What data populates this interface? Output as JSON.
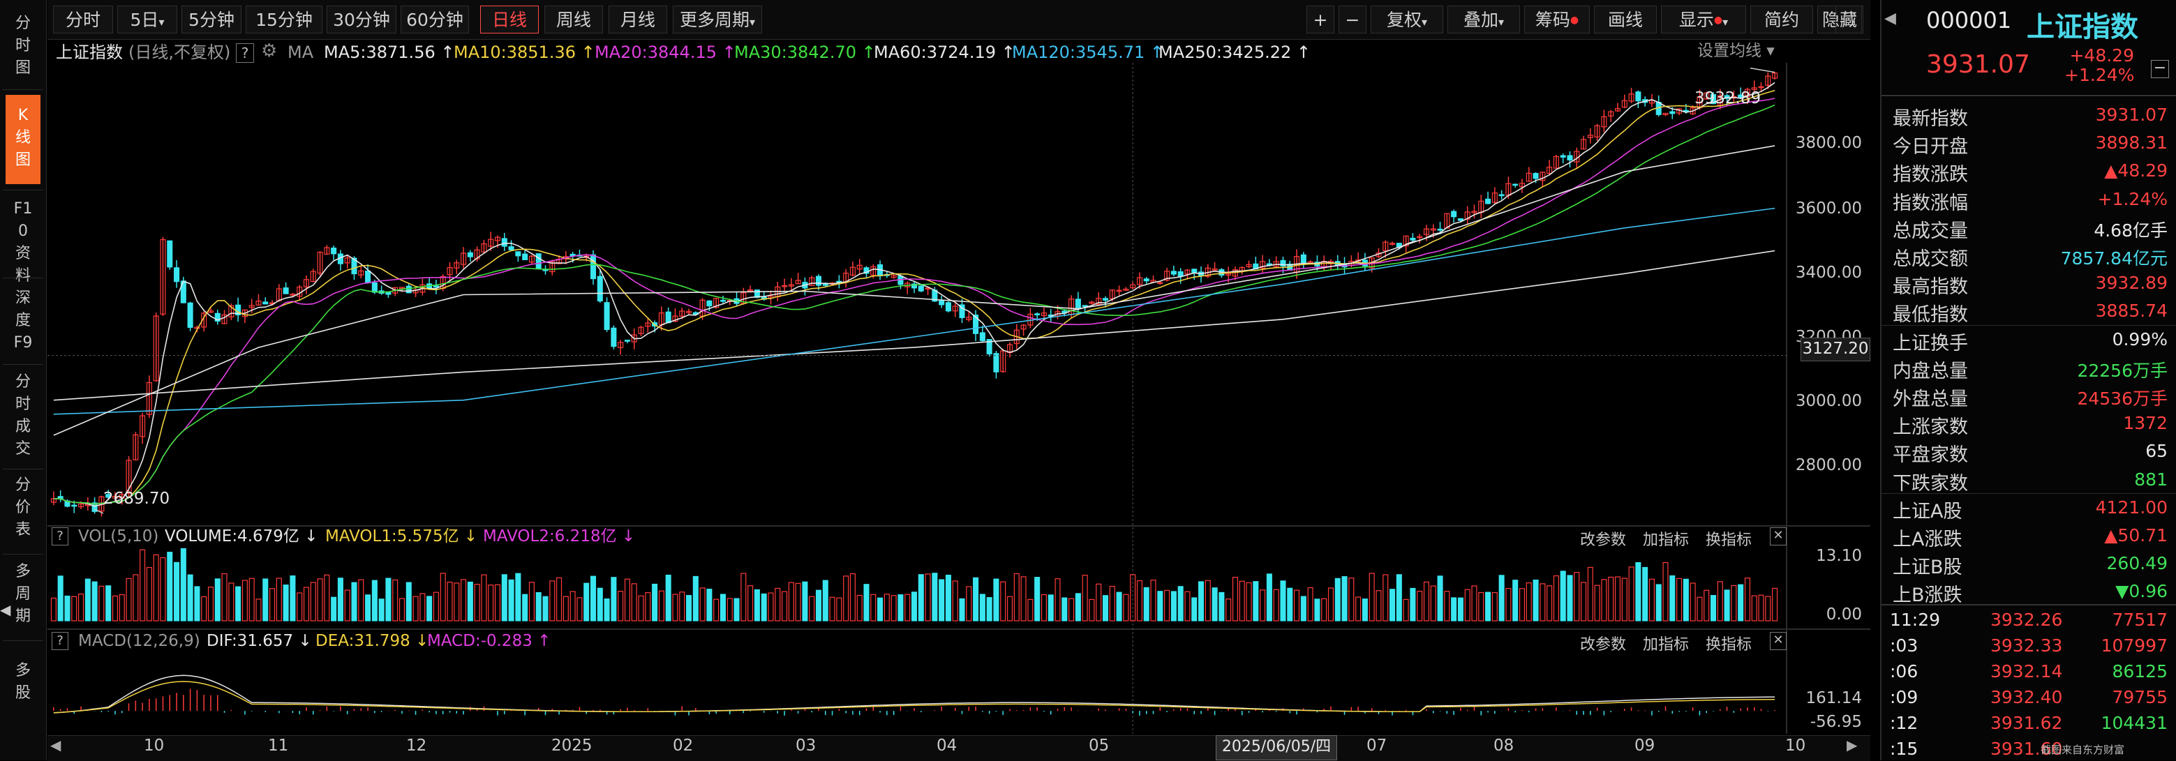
{
  "toolbar": {
    "period_tabs": [
      "分时",
      "5日",
      "5分钟",
      "15分钟",
      "30分钟",
      "60分钟",
      "日线",
      "周线",
      "月线",
      "更多周期"
    ],
    "right_buttons": [
      "+",
      "−",
      "复权",
      "叠加",
      "筹码",
      "画线",
      "显示",
      "简约",
      "隐藏"
    ]
  },
  "sidebar": {
    "items": [
      "分时图",
      "K线图",
      "F10资料",
      "深度F9",
      "分时成交",
      "分价表",
      "多周期",
      "多股"
    ]
  },
  "main": {
    "title": "上证指数",
    "adjust": "(日线,不复权)",
    "ma_label": "MA",
    "ma": [
      {
        "text": "MA5:3871.56 ↑",
        "color": "#e8e8e8"
      },
      {
        "text": "MA10:3851.36 ↑",
        "color": "#f0d040"
      },
      {
        "text": "MA20:3844.15 ↑",
        "color": "#e040e0"
      },
      {
        "text": "MA30:3842.70 ↑",
        "color": "#40e040"
      },
      {
        "text": "MA60:3724.19 ↑",
        "color": "#e8e8e8"
      },
      {
        "text": "MA120:3545.71 ↑",
        "color": "#40c0f0"
      },
      {
        "text": "MA250:3425.22 ↑",
        "color": "#e8e8e8"
      }
    ],
    "setting": "设置均线",
    "high_label": "3932.89",
    "low_label": "2689.70",
    "price_tag": "3127.20",
    "y_ticks": [
      "3800.00",
      "3600.00",
      "3400.00",
      "3200.00",
      "3000.00",
      "2800.00"
    ],
    "vol": {
      "help": "?",
      "name": "VOL(5,10)",
      "volume": "VOLUME:4.679亿 ↓",
      "mavol1": "MAVOL1:5.575亿 ↓",
      "mavol2": "MAVOL2:6.218亿 ↓",
      "buttons": [
        "改参数",
        "加指标",
        "换指标"
      ],
      "y_ticks": [
        "13.10",
        "0.00"
      ]
    },
    "macd": {
      "help": "?",
      "name": "MACD(12,26,9)",
      "dif": "DIF:31.657 ↓",
      "dea": "DEA:31.798 ↓",
      "macd": "MACD:-0.283 ↑",
      "buttons": [
        "改参数",
        "加指标",
        "换指标"
      ],
      "y_ticks": [
        "161.14",
        "-56.95"
      ]
    },
    "x_labels": [
      "10",
      "11",
      "12",
      "2025",
      "02",
      "03",
      "04",
      "05",
      "06",
      "07",
      "08",
      "09",
      "10"
    ],
    "cursor_date": "2025/06/05/四"
  },
  "quote": {
    "code": "000001",
    "name": "上证指数",
    "price": "3931.07",
    "change": "+48.29",
    "change_pct": "+1.24%",
    "rows": [
      {
        "label": "最新指数",
        "value": "3931.07",
        "color": "red"
      },
      {
        "label": "今日开盘",
        "value": "3898.31",
        "color": "red"
      },
      {
        "label": "指数涨跌",
        "value": "▲48.29",
        "color": "red"
      },
      {
        "label": "指数涨幅",
        "value": "+1.24%",
        "color": "red"
      },
      {
        "label": "总成交量",
        "value": "4.68亿手",
        "color": "white"
      },
      {
        "label": "总成交额",
        "value": "7857.84亿元",
        "color": "cyan"
      },
      {
        "label": "最高指数",
        "value": "3932.89",
        "color": "red"
      },
      {
        "label": "最低指数",
        "value": "3885.74",
        "color": "red"
      },
      {
        "label": "上证换手",
        "value": "0.99%",
        "color": "white"
      },
      {
        "label": "内盘总量",
        "value": "22256万手",
        "color": "green"
      },
      {
        "label": "外盘总量",
        "value": "24536万手",
        "color": "red"
      },
      {
        "label": "上涨家数",
        "value": "1372",
        "color": "red"
      },
      {
        "label": "平盘家数",
        "value": "65",
        "color": "white"
      },
      {
        "label": "下跌家数",
        "value": "881",
        "color": "green"
      },
      {
        "label": "上证A股",
        "value": "4121.00",
        "color": "red"
      },
      {
        "label": "上A涨跌",
        "value": "▲50.71",
        "color": "red"
      },
      {
        "label": "上证B股",
        "value": "260.49",
        "color": "green"
      },
      {
        "label": "上B涨跌",
        "value": "▼0.96",
        "color": "green"
      }
    ],
    "ticks": [
      {
        "time": "11:29",
        "price": "3932.26",
        "vol": "77517",
        "vcolor": "red"
      },
      {
        "time": ":03",
        "price": "3932.33",
        "vol": "107997",
        "vcolor": "red"
      },
      {
        "time": ":06",
        "price": "3932.14",
        "vol": "86125",
        "vcolor": "green"
      },
      {
        "time": ":09",
        "price": "3932.40",
        "vol": "79755",
        "vcolor": "red"
      },
      {
        "time": ":12",
        "price": "3931.62",
        "vol": "104431",
        "vcolor": "green"
      },
      {
        "time": ":15",
        "price": "3931.60",
        "vol": "",
        "vcolor": "red"
      }
    ],
    "watermark": "截图来自东方财富"
  },
  "chart_data": {
    "type": "candlestick",
    "title": "上证指数",
    "x_range": [
      "10",
      "10"
    ],
    "ylim": [
      2650,
      3960
    ],
    "ma_values": {
      "MA5": 3871.56,
      "MA10": 3851.36,
      "MA20": 3844.15,
      "MA30": 3842.7,
      "MA60": 3724.19,
      "MA120": 3545.71,
      "MA250": 3425.22
    },
    "high": 3932.89,
    "low": 2689.7,
    "anchors": [
      {
        "i": 0,
        "p": 2720
      },
      {
        "i": 6,
        "p": 2700
      },
      {
        "i": 10,
        "p": 2740
      },
      {
        "i": 14,
        "p": 3050
      },
      {
        "i": 16,
        "p": 3450
      },
      {
        "i": 20,
        "p": 3220
      },
      {
        "i": 28,
        "p": 3260
      },
      {
        "i": 36,
        "p": 3320
      },
      {
        "i": 40,
        "p": 3440
      },
      {
        "i": 48,
        "p": 3300
      },
      {
        "i": 56,
        "p": 3340
      },
      {
        "i": 64,
        "p": 3460
      },
      {
        "i": 72,
        "p": 3380
      },
      {
        "i": 78,
        "p": 3400
      },
      {
        "i": 82,
        "p": 3160
      },
      {
        "i": 90,
        "p": 3240
      },
      {
        "i": 100,
        "p": 3290
      },
      {
        "i": 110,
        "p": 3330
      },
      {
        "i": 120,
        "p": 3380
      },
      {
        "i": 126,
        "p": 3330
      },
      {
        "i": 134,
        "p": 3240
      },
      {
        "i": 138,
        "p": 3100
      },
      {
        "i": 142,
        "p": 3220
      },
      {
        "i": 150,
        "p": 3280
      },
      {
        "i": 162,
        "p": 3350
      },
      {
        "i": 172,
        "p": 3360
      },
      {
        "i": 182,
        "p": 3390
      },
      {
        "i": 190,
        "p": 3380
      },
      {
        "i": 198,
        "p": 3460
      },
      {
        "i": 206,
        "p": 3530
      },
      {
        "i": 214,
        "p": 3610
      },
      {
        "i": 222,
        "p": 3700
      },
      {
        "i": 230,
        "p": 3870
      },
      {
        "i": 236,
        "p": 3820
      },
      {
        "i": 242,
        "p": 3860
      },
      {
        "i": 248,
        "p": 3875
      },
      {
        "i": 252,
        "p": 3931
      }
    ],
    "ma_series": [
      {
        "name": "MA250",
        "points": [
          [
            0,
            3000
          ],
          [
            60,
            3080
          ],
          [
            126,
            3150
          ],
          [
            180,
            3230
          ],
          [
            230,
            3360
          ],
          [
            252,
            3425
          ]
        ]
      },
      {
        "name": "MA120",
        "points": [
          [
            0,
            2960
          ],
          [
            60,
            3000
          ],
          [
            126,
            3180
          ],
          [
            180,
            3330
          ],
          [
            230,
            3490
          ],
          [
            252,
            3546
          ]
        ]
      },
      {
        "name": "MA60",
        "points": [
          [
            0,
            2900
          ],
          [
            30,
            3150
          ],
          [
            60,
            3300
          ],
          [
            110,
            3310
          ],
          [
            150,
            3260
          ],
          [
            190,
            3390
          ],
          [
            230,
            3650
          ],
          [
            252,
            3724
          ]
        ]
      }
    ],
    "vol_ylim": [
      0,
      13.1
    ],
    "macd_ylim": [
      -56.95,
      161.14
    ]
  }
}
